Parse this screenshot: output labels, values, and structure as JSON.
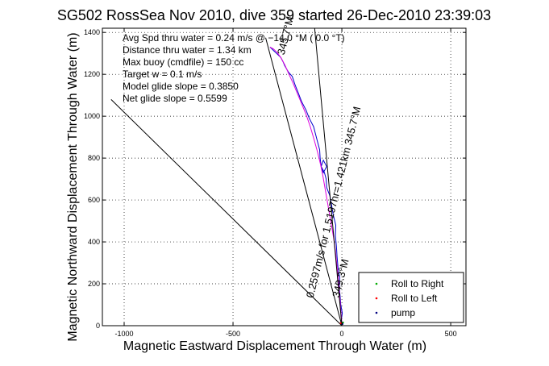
{
  "chart_data": {
    "type": "line",
    "title": "SG502 RossSea Nov 2010, dive 359 started 26-Dec-2010 23:39:03",
    "xlabel": "Magnetic Eastward Displacement Through Water (m)",
    "ylabel": "Magnetic Northward Displacement Through Water (m)",
    "xlim": [
      -1100,
      570
    ],
    "ylim": [
      0,
      1420
    ],
    "xticks": [
      -1000,
      -500,
      0,
      500
    ],
    "yticks": [
      0,
      200,
      400,
      600,
      800,
      1000,
      1200,
      1400
    ],
    "grid": true,
    "legend_position": "bottom-right",
    "legend": [
      {
        "label": "Roll to Right",
        "color": "#00aa00"
      },
      {
        "label": "Roll to Left",
        "color": "#ff0000"
      },
      {
        "label": "pump",
        "color": "#000080"
      }
    ],
    "stats": [
      "Avg Spd thru water = 0.24 m/s @ −14.0   °M (  0.0 °T)",
      "Distance thru water = 1.34 km",
      "Max buoy (cmdfile) = 150 cc",
      "Target w = 0.1 m/s",
      "Model glide slope = 0.3850",
      "Net glide slope = 0.5599"
    ],
    "annotations": [
      {
        "text": "0.2597m/s for 1.5197hr=1.421km 345.7°M",
        "x": -132,
        "y": 130,
        "angle": -76
      },
      {
        "text": "345.7°M",
        "x": -265,
        "y": 1290,
        "angle": -76
      },
      {
        "text": "349.3°M",
        "x": -12,
        "y": 132,
        "angle": -76
      }
    ],
    "series": [
      {
        "color": "#0000cc",
        "x": [
          0,
          -2,
          2,
          -5,
          -8,
          -12,
          -10,
          -18,
          -22,
          -25,
          -30,
          -28,
          -40,
          -48,
          -55,
          -70,
          -72,
          -80,
          -95,
          -85,
          -70,
          -85,
          -95,
          -100,
          -102,
          -110,
          -120,
          -130,
          -150,
          -165,
          -185,
          -200,
          -215,
          -228,
          -245,
          -262,
          -270,
          -280,
          -290,
          -300,
          -310,
          -320,
          -325,
          -330
        ],
        "y": [
          5,
          30,
          60,
          100,
          140,
          180,
          230,
          280,
          330,
          380,
          430,
          480,
          530,
          580,
          620,
          660,
          700,
          730,
          760,
          790,
          760,
          730,
          760,
          800,
          840,
          870,
          910,
          950,
          990,
          1030,
          1070,
          1110,
          1150,
          1190,
          1210,
          1240,
          1260,
          1280,
          1290,
          1300,
          1310,
          1320,
          1325,
          1330
        ]
      },
      {
        "color": "#dd00dd",
        "x": [
          0,
          -2,
          -6,
          -10,
          -14,
          -18,
          -24,
          -30,
          -38,
          -48,
          -58,
          -68,
          -78,
          -88,
          -98,
          -112,
          -128,
          -145,
          -165,
          -185,
          -205,
          -225,
          -245,
          -262,
          -280,
          -298,
          -315,
          -330
        ],
        "y": [
          5,
          40,
          90,
          140,
          190,
          240,
          300,
          360,
          420,
          480,
          540,
          600,
          660,
          720,
          770,
          830,
          890,
          950,
          1010,
          1060,
          1110,
          1160,
          1205,
          1245,
          1280,
          1305,
          1322,
          1330
        ]
      },
      {
        "color": "#000000",
        "x": [
          0,
          -350
        ],
        "y": [
          0,
          1375
        ]
      },
      {
        "color": "#000000",
        "x": [
          0,
          -1060
        ],
        "y": [
          0,
          1080
        ]
      },
      {
        "color": "#000000",
        "x": [
          0,
          -125
        ],
        "y": [
          0,
          1420
        ]
      }
    ],
    "legend_markers": [
      {
        "color": "#00aa00",
        "x": 5,
        "y": 15
      },
      {
        "color": "#ff0000",
        "x": -5,
        "y": 12
      },
      {
        "color": "#000080",
        "x": 3,
        "y": 8
      }
    ]
  }
}
